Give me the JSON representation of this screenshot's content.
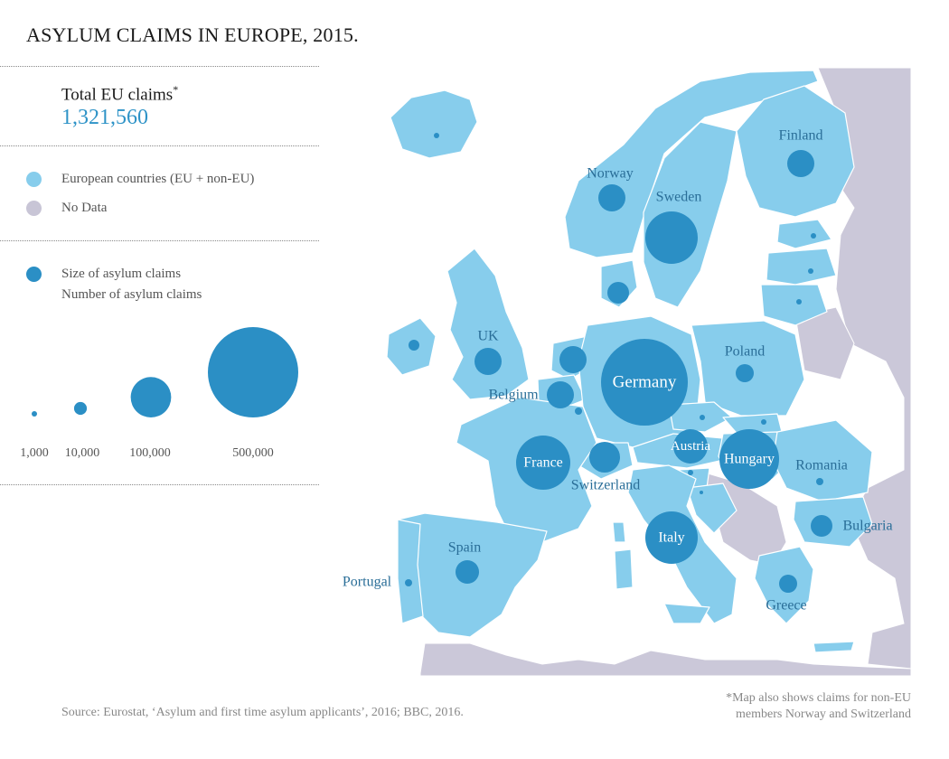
{
  "title": "ASYLUM CLAIMS IN EUROPE, 2015.",
  "total": {
    "label": "Total EU claims",
    "asterisk": "*",
    "value": "1,321,560"
  },
  "legend": {
    "items": [
      {
        "label": "European countries (EU + non-EU)",
        "color": "#87cdec"
      },
      {
        "label": "No Data",
        "color": "#c8c5d6"
      }
    ],
    "size_title": "Size of asylum claims",
    "size_subtitle": "Number of asylum claims",
    "bubble_color": "#2b8fc5",
    "scale": [
      {
        "value": 1000,
        "label": "1,000"
      },
      {
        "value": 10000,
        "label": "10,000"
      },
      {
        "value": 100000,
        "label": "100,000"
      },
      {
        "value": 500000,
        "label": "500,000"
      }
    ]
  },
  "map": {
    "land_color": "#87cdec",
    "nodata_color": "#cbc8d9",
    "border_color": "#ffffff",
    "countries": [
      {
        "name": "Germany",
        "label": "Germany"
      },
      {
        "name": "Sweden",
        "label": "Sweden"
      },
      {
        "name": "Hungary",
        "label": "Hungary"
      },
      {
        "name": "Italy",
        "label": "Italy"
      },
      {
        "name": "France",
        "label": "France"
      },
      {
        "name": "Austria",
        "label": "Austria"
      },
      {
        "name": "Finland",
        "label": "Finland"
      },
      {
        "name": "Norway",
        "label": "Norway"
      },
      {
        "name": "UK",
        "label": "UK"
      },
      {
        "name": "Belgium",
        "label": "Belgium"
      },
      {
        "name": "Switzerland",
        "label": "Switzerland"
      },
      {
        "name": "Netherlands",
        "label": ""
      },
      {
        "name": "Denmark",
        "label": ""
      },
      {
        "name": "Spain",
        "label": "Spain"
      },
      {
        "name": "Poland",
        "label": "Poland"
      },
      {
        "name": "Bulgaria",
        "label": "Bulgaria"
      },
      {
        "name": "Greece",
        "label": "Greece"
      },
      {
        "name": "Romania",
        "label": "Romania"
      },
      {
        "name": "Portugal",
        "label": "Portugal"
      },
      {
        "name": "Ireland",
        "label": ""
      },
      {
        "name": "Iceland",
        "label": ""
      },
      {
        "name": "Estonia",
        "label": ""
      },
      {
        "name": "Latvia",
        "label": ""
      },
      {
        "name": "Lithuania",
        "label": ""
      },
      {
        "name": "Czech Republic",
        "label": ""
      },
      {
        "name": "Slovakia",
        "label": ""
      },
      {
        "name": "Slovenia",
        "label": ""
      },
      {
        "name": "Croatia",
        "label": ""
      },
      {
        "name": "Luxembourg",
        "label": ""
      }
    ]
  },
  "source": "Source: Eurostat, ‘Asylum and first time asylum applicants’, 2016; BBC, 2016.",
  "note": {
    "line1": "*Map also shows claims for non-EU",
    "line2": "members Norway and Switzerland"
  }
}
